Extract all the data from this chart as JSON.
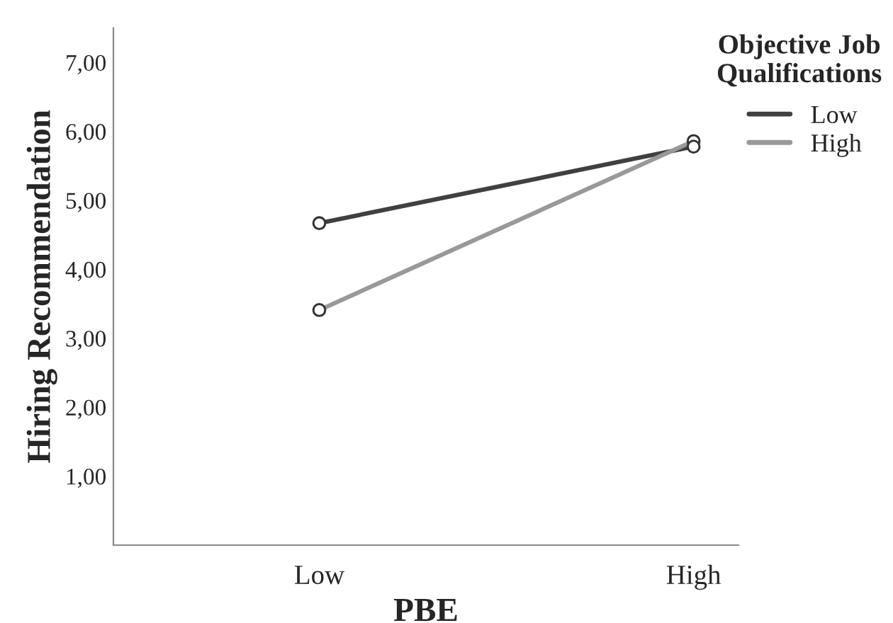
{
  "chart_data": {
    "type": "line",
    "xlabel": "PBE",
    "ylabel": "Hiring Recommendation",
    "legend_title": "Objective Job Qualifications",
    "categories": [
      "Low",
      "High"
    ],
    "series": [
      {
        "name": "Low",
        "color": "#404040",
        "values": [
          4.67,
          5.78
        ]
      },
      {
        "name": "High",
        "color": "#999999",
        "values": [
          3.41,
          5.86
        ]
      }
    ],
    "ylim": [
      0,
      7.5
    ],
    "yticks": [
      {
        "value": 1,
        "label": "1,00"
      },
      {
        "value": 2,
        "label": "2,00"
      },
      {
        "value": 3,
        "label": "3,00"
      },
      {
        "value": 4,
        "label": "4,00"
      },
      {
        "value": 5,
        "label": "5,00"
      },
      {
        "value": 6,
        "label": "6,00"
      },
      {
        "value": 7,
        "label": "7,00"
      }
    ],
    "marker": "circle",
    "line_style": "solid",
    "grid": false,
    "legend": "top right"
  }
}
